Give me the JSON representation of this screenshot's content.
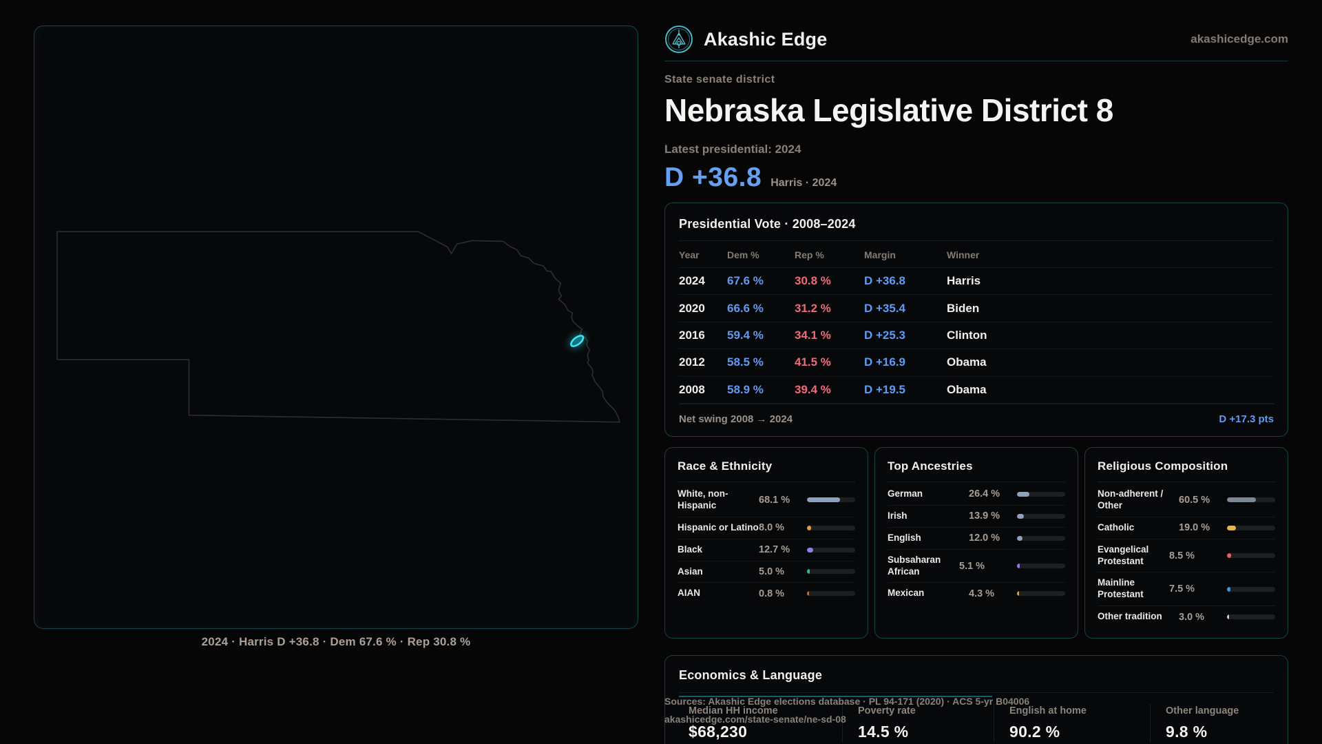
{
  "brand": {
    "name": "Akashic Edge",
    "domain": "akashicedge.com",
    "logo_icon": "akashic-edge-emblem"
  },
  "hero": {
    "eyebrow": "State senate district",
    "title": "Nebraska Legislative District 8",
    "latest_label": "Latest presidential: 2024",
    "margin": "D +36.8",
    "margin_caption": "Harris · 2024"
  },
  "map": {
    "region": "Nebraska",
    "caption": "2024 · Harris D +36.8 · Dem 67.6 % · Rep 30.8 %",
    "highlight_color": "#3ae6f2"
  },
  "presidential_table": {
    "title": "Presidential Vote · 2008–2024",
    "columns": [
      "Year",
      "Dem %",
      "Rep %",
      "Margin",
      "Winner"
    ],
    "rows": [
      {
        "year": "2024",
        "dem": "67.6 %",
        "rep": "30.8 %",
        "margin": "D +36.8",
        "winner": "Harris"
      },
      {
        "year": "2020",
        "dem": "66.6 %",
        "rep": "31.2 %",
        "margin": "D +35.4",
        "winner": "Biden"
      },
      {
        "year": "2016",
        "dem": "59.4 %",
        "rep": "34.1 %",
        "margin": "D +25.3",
        "winner": "Clinton"
      },
      {
        "year": "2012",
        "dem": "58.5 %",
        "rep": "41.5 %",
        "margin": "D +16.9",
        "winner": "Obama"
      },
      {
        "year": "2008",
        "dem": "58.9 %",
        "rep": "39.4 %",
        "margin": "D +19.5",
        "winner": "Obama"
      }
    ],
    "net_swing_label": "Net swing 2008 → 2024",
    "net_swing_value": "D +17.3 pts"
  },
  "demographics": [
    {
      "title": "Race & Ethnicity",
      "rows": [
        {
          "label": "White, non-Hispanic",
          "value": "68.1 %",
          "pct": 68.1,
          "color": "#8ea2bd"
        },
        {
          "label": "Hispanic or Latino",
          "value": "8.0 %",
          "pct": 8.0,
          "color": "#e09c3f"
        },
        {
          "label": "Black",
          "value": "12.7 %",
          "pct": 12.7,
          "color": "#8f7fe8"
        },
        {
          "label": "Asian",
          "value": "5.0 %",
          "pct": 5.0,
          "color": "#2fbf8f"
        },
        {
          "label": "AIAN",
          "value": "0.8 %",
          "pct": 0.8,
          "color": "#c2703a"
        }
      ]
    },
    {
      "title": "Top Ancestries",
      "rows": [
        {
          "label": "German",
          "value": "26.4 %",
          "pct": 26.4,
          "color": "#8ea2bd"
        },
        {
          "label": "Irish",
          "value": "13.9 %",
          "pct": 13.9,
          "color": "#8ea2bd"
        },
        {
          "label": "English",
          "value": "12.0 %",
          "pct": 12.0,
          "color": "#8ea2bd"
        },
        {
          "label": "Subsaharan African",
          "value": "5.1 %",
          "pct": 5.1,
          "color": "#8f7fe8"
        },
        {
          "label": "Mexican",
          "value": "4.3 %",
          "pct": 4.3,
          "color": "#e0a33c"
        }
      ]
    },
    {
      "title": "Religious Composition",
      "rows": [
        {
          "label": "Non-adherent / Other",
          "value": "60.5 %",
          "pct": 60.5,
          "color": "#7e8796"
        },
        {
          "label": "Catholic",
          "value": "19.0 %",
          "pct": 19.0,
          "color": "#e6b93f"
        },
        {
          "label": "Evangelical Protestant",
          "value": "8.5 %",
          "pct": 8.5,
          "color": "#e25f5f"
        },
        {
          "label": "Mainline Protestant",
          "value": "7.5 %",
          "pct": 7.5,
          "color": "#4a90e2"
        },
        {
          "label": "Other tradition",
          "value": "3.0 %",
          "pct": 3.0,
          "color": "#cfcfcf"
        }
      ]
    }
  ],
  "economics": {
    "title": "Economics & Language",
    "stats": [
      {
        "label": "Median HH income",
        "value": "$68,230"
      },
      {
        "label": "Poverty rate",
        "value": "14.5 %"
      },
      {
        "label": "English at home",
        "value": "90.2 %"
      },
      {
        "label": "Other language",
        "value": "9.8 %"
      }
    ]
  },
  "footer": {
    "line1": "Sources: Akashic Edge elections database · PL 94-171 (2020) · ACS 5-yr B04006",
    "line2": "akashicedge.com/state-senate/ne-sd-08"
  },
  "colors": {
    "accent_teal": "#2bbecd",
    "dem_blue": "#639af0",
    "rep_red": "#ee6b7c",
    "highlight_cyan": "#3ae6f2",
    "background": "#060607"
  }
}
